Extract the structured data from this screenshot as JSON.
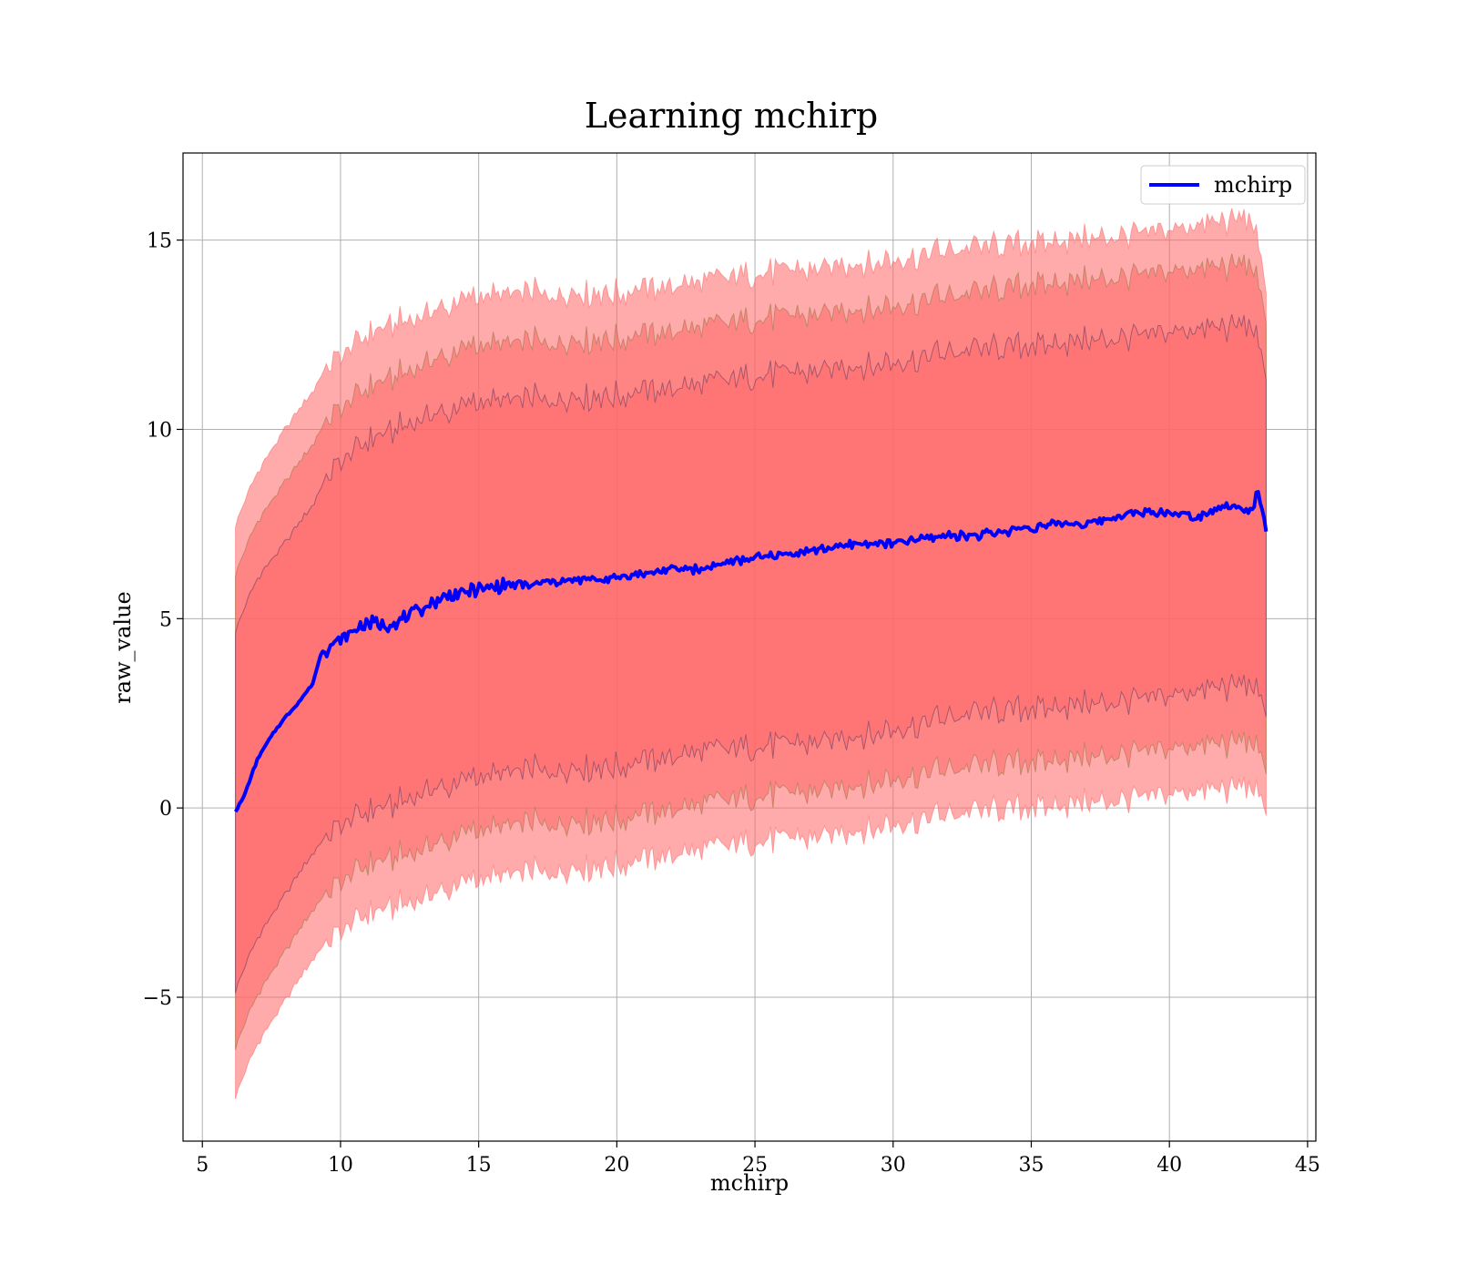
{
  "chart_data": {
    "type": "line",
    "title": "Learning mchirp",
    "xlabel": "mchirp",
    "ylabel": "raw_value",
    "xlim": [
      4.3,
      45.3
    ],
    "ylim": [
      -8.8,
      17.3
    ],
    "xticks": [
      5,
      10,
      15,
      20,
      25,
      30,
      35,
      40,
      45
    ],
    "yticks": [
      -5,
      0,
      5,
      10,
      15
    ],
    "ytick_labels": [
      "−5",
      "0",
      "5",
      "10",
      "15"
    ],
    "grid": true,
    "legend": {
      "placement": "upper right",
      "entries": [
        "mchirp"
      ]
    },
    "colors": {
      "line": "#0000ff",
      "band_outer": "#ff6666",
      "band_middle": "#a9866b",
      "band_inner": "#75456a",
      "grid": "#b0b0b0"
    },
    "series": [
      {
        "name": "mchirp",
        "x": [
          6.2,
          6.5,
          7.0,
          7.5,
          8.0,
          8.5,
          9.0,
          9.3,
          9.7,
          10.0,
          10.5,
          11.0,
          11.5,
          12.0,
          12.5,
          13.0,
          13.5,
          14.0,
          14.5,
          15.0,
          15.5,
          16.0,
          17.0,
          18.0,
          19.0,
          20.0,
          21.0,
          22.0,
          23.0,
          24.0,
          25.0,
          26.0,
          27.0,
          28.0,
          29.0,
          30.0,
          31.0,
          32.0,
          33.0,
          34.0,
          35.0,
          36.0,
          37.0,
          38.0,
          39.0,
          40.0,
          41.0,
          42.0,
          43.0,
          43.2,
          43.5
        ],
        "values": [
          -0.1,
          0.3,
          1.3,
          1.9,
          2.4,
          2.8,
          3.3,
          4.1,
          4.3,
          4.4,
          4.7,
          4.9,
          4.8,
          4.9,
          5.1,
          5.3,
          5.5,
          5.6,
          5.7,
          5.8,
          5.8,
          5.9,
          5.9,
          6.0,
          6.0,
          6.1,
          6.2,
          6.3,
          6.3,
          6.5,
          6.6,
          6.7,
          6.8,
          6.9,
          7.0,
          7.0,
          7.1,
          7.2,
          7.2,
          7.3,
          7.4,
          7.5,
          7.5,
          7.7,
          7.8,
          7.8,
          7.7,
          8.0,
          7.8,
          8.5,
          7.3
        ]
      }
    ],
    "bands": [
      {
        "x": [
          6.2,
          7.0,
          8.0,
          9.0,
          9.5,
          10.0,
          11.0,
          12.0,
          13.0,
          14.0,
          15.0,
          17.0,
          20.0,
          23.0,
          25.0,
          28.0,
          30.0,
          33.0,
          35.0,
          38.0,
          40.0,
          42.0,
          43.0,
          43.5
        ],
        "upper": [
          7.5,
          8.9,
          10.0,
          11.0,
          11.7,
          12.0,
          12.5,
          12.8,
          13.0,
          13.3,
          13.5,
          13.6,
          13.6,
          13.9,
          14.1,
          14.3,
          14.5,
          14.8,
          14.9,
          15.1,
          15.3,
          15.5,
          15.6,
          13.6
        ],
        "lower": [
          -7.6,
          -6.2,
          -5.1,
          -4.0,
          -3.5,
          -3.2,
          -2.8,
          -2.6,
          -2.4,
          -2.1,
          -1.9,
          -1.7,
          -1.5,
          -1.1,
          -0.9,
          -0.7,
          -0.4,
          -0.1,
          0.0,
          0.2,
          0.4,
          0.5,
          0.6,
          -0.2
        ]
      },
      {
        "x": [
          6.2,
          7.0,
          8.0,
          9.0,
          9.5,
          10.0,
          11.0,
          12.0,
          13.0,
          14.0,
          15.0,
          17.0,
          20.0,
          23.0,
          25.0,
          28.0,
          30.0,
          33.0,
          35.0,
          38.0,
          40.0,
          42.0,
          43.0,
          43.5
        ],
        "upper": [
          6.2,
          7.6,
          8.6,
          9.6,
          10.3,
          10.6,
          11.1,
          11.4,
          11.7,
          12.0,
          12.2,
          12.3,
          12.4,
          12.7,
          12.9,
          13.1,
          13.3,
          13.6,
          13.8,
          14.0,
          14.2,
          14.3,
          14.4,
          12.8
        ],
        "lower": [
          -6.3,
          -4.9,
          -3.8,
          -2.7,
          -2.2,
          -1.9,
          -1.5,
          -1.3,
          -1.1,
          -0.8,
          -0.6,
          -0.4,
          -0.3,
          0.1,
          0.3,
          0.5,
          0.8,
          1.1,
          1.2,
          1.4,
          1.6,
          1.7,
          1.8,
          0.9
        ]
      },
      {
        "x": [
          6.2,
          7.0,
          8.0,
          9.0,
          9.5,
          10.0,
          11.0,
          12.0,
          13.0,
          14.0,
          15.0,
          17.0,
          20.0,
          23.0,
          25.0,
          28.0,
          30.0,
          33.0,
          35.0,
          38.0,
          40.0,
          42.0,
          43.0,
          43.5
        ],
        "upper": [
          4.7,
          6.1,
          7.0,
          8.0,
          8.8,
          9.2,
          9.7,
          10.0,
          10.3,
          10.5,
          10.7,
          10.8,
          10.9,
          11.2,
          11.4,
          11.6,
          11.8,
          12.1,
          12.2,
          12.4,
          12.6,
          12.7,
          12.8,
          11.3
        ],
        "lower": [
          -4.8,
          -3.4,
          -2.3,
          -1.2,
          -0.7,
          -0.4,
          -0.1,
          0.1,
          0.4,
          0.6,
          0.8,
          1.0,
          1.1,
          1.5,
          1.6,
          1.8,
          2.1,
          2.5,
          2.6,
          2.8,
          3.0,
          3.2,
          3.3,
          2.4
        ]
      }
    ]
  }
}
